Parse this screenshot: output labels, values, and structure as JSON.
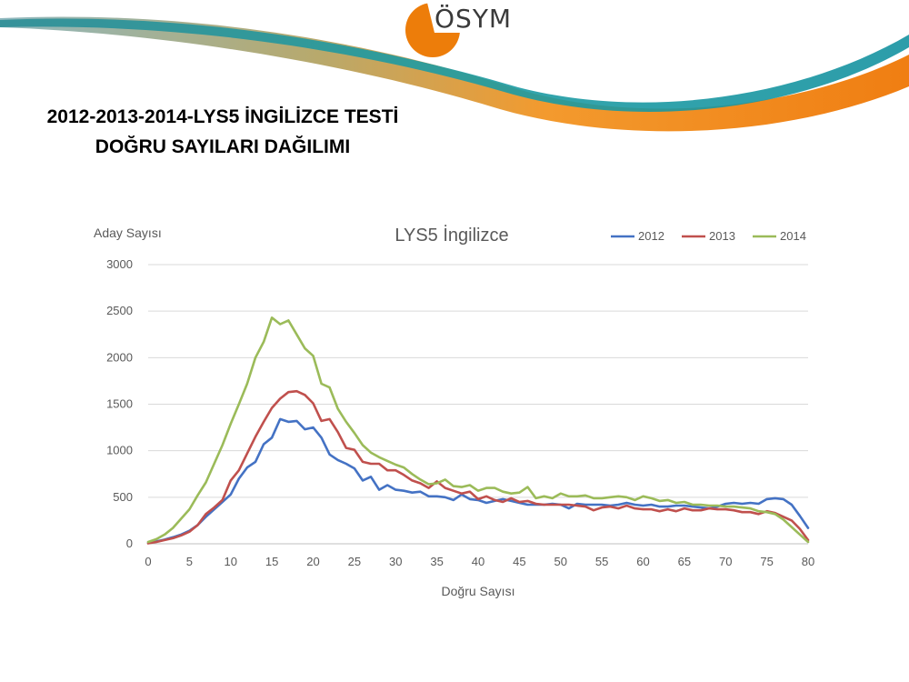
{
  "logo": {
    "text": "ÖSYM",
    "orange": "#ED7D0A",
    "teal": "#1A9AA0"
  },
  "slide_title": {
    "line1": "2012-2013-2014-LYS5 İNGİLİZCE TESTİ",
    "line2": "DOĞRU SAYILARI DAĞILIMI"
  },
  "chart_data": {
    "type": "line",
    "title": "LYS5 İngilizce",
    "xlabel": "Doğru Sayısı",
    "ylabel": "Aday Sayısı",
    "xlim": [
      0,
      80
    ],
    "ylim": [
      0,
      3000
    ],
    "xticks": [
      0,
      5,
      10,
      15,
      20,
      25,
      30,
      35,
      40,
      45,
      50,
      55,
      60,
      65,
      70,
      75,
      80
    ],
    "yticks": [
      0,
      500,
      1000,
      1500,
      2000,
      2500,
      3000
    ],
    "grid": true,
    "legend_position": "top-right",
    "x": [
      0,
      1,
      2,
      3,
      4,
      5,
      6,
      7,
      8,
      9,
      10,
      11,
      12,
      13,
      14,
      15,
      16,
      17,
      18,
      19,
      20,
      21,
      22,
      23,
      24,
      25,
      26,
      27,
      28,
      29,
      30,
      31,
      32,
      33,
      34,
      35,
      36,
      37,
      38,
      39,
      40,
      41,
      42,
      43,
      44,
      45,
      46,
      47,
      48,
      49,
      50,
      51,
      52,
      53,
      54,
      55,
      56,
      57,
      58,
      59,
      60,
      61,
      62,
      63,
      64,
      65,
      66,
      67,
      68,
      69,
      70,
      71,
      72,
      73,
      74,
      75,
      76,
      77,
      78,
      79,
      80
    ],
    "series": [
      {
        "name": "2012",
        "color": "#4472C4",
        "values": [
          10,
          25,
          45,
          70,
          100,
          140,
          200,
          290,
          370,
          450,
          530,
          700,
          820,
          880,
          1070,
          1140,
          1340,
          1310,
          1320,
          1230,
          1250,
          1140,
          960,
          900,
          860,
          810,
          680,
          720,
          580,
          630,
          580,
          570,
          550,
          560,
          510,
          510,
          500,
          470,
          530,
          480,
          470,
          440,
          460,
          480,
          460,
          440,
          420,
          420,
          420,
          430,
          420,
          380,
          430,
          420,
          420,
          420,
          410,
          420,
          440,
          420,
          410,
          420,
          400,
          400,
          410,
          410,
          400,
          390,
          380,
          400,
          430,
          440,
          430,
          440,
          430,
          480,
          490,
          480,
          420,
          300,
          170
        ]
      },
      {
        "name": "2013",
        "color": "#C0504D",
        "values": [
          5,
          20,
          40,
          60,
          90,
          130,
          200,
          320,
          390,
          470,
          680,
          790,
          970,
          1150,
          1310,
          1460,
          1560,
          1630,
          1640,
          1600,
          1510,
          1320,
          1340,
          1200,
          1030,
          1010,
          880,
          860,
          860,
          790,
          790,
          740,
          680,
          650,
          600,
          670,
          600,
          570,
          540,
          560,
          480,
          510,
          470,
          450,
          490,
          450,
          460,
          430,
          420,
          420,
          420,
          420,
          410,
          400,
          360,
          390,
          400,
          380,
          410,
          380,
          370,
          370,
          350,
          370,
          350,
          380,
          360,
          360,
          380,
          370,
          370,
          360,
          340,
          340,
          320,
          350,
          330,
          290,
          250,
          160,
          40
        ]
      },
      {
        "name": "2014",
        "color": "#9BBB59",
        "values": [
          20,
          50,
          100,
          170,
          270,
          370,
          520,
          660,
          860,
          1060,
          1290,
          1500,
          1720,
          2000,
          2170,
          2430,
          2360,
          2400,
          2250,
          2100,
          2020,
          1720,
          1680,
          1450,
          1310,
          1190,
          1060,
          980,
          930,
          890,
          850,
          820,
          750,
          690,
          640,
          650,
          690,
          620,
          610,
          630,
          570,
          600,
          600,
          560,
          540,
          550,
          610,
          490,
          510,
          490,
          540,
          510,
          510,
          520,
          490,
          490,
          500,
          510,
          500,
          470,
          510,
          490,
          460,
          470,
          440,
          450,
          420,
          420,
          410,
          410,
          400,
          400,
          390,
          380,
          350,
          340,
          320,
          260,
          180,
          100,
          20
        ]
      }
    ]
  }
}
